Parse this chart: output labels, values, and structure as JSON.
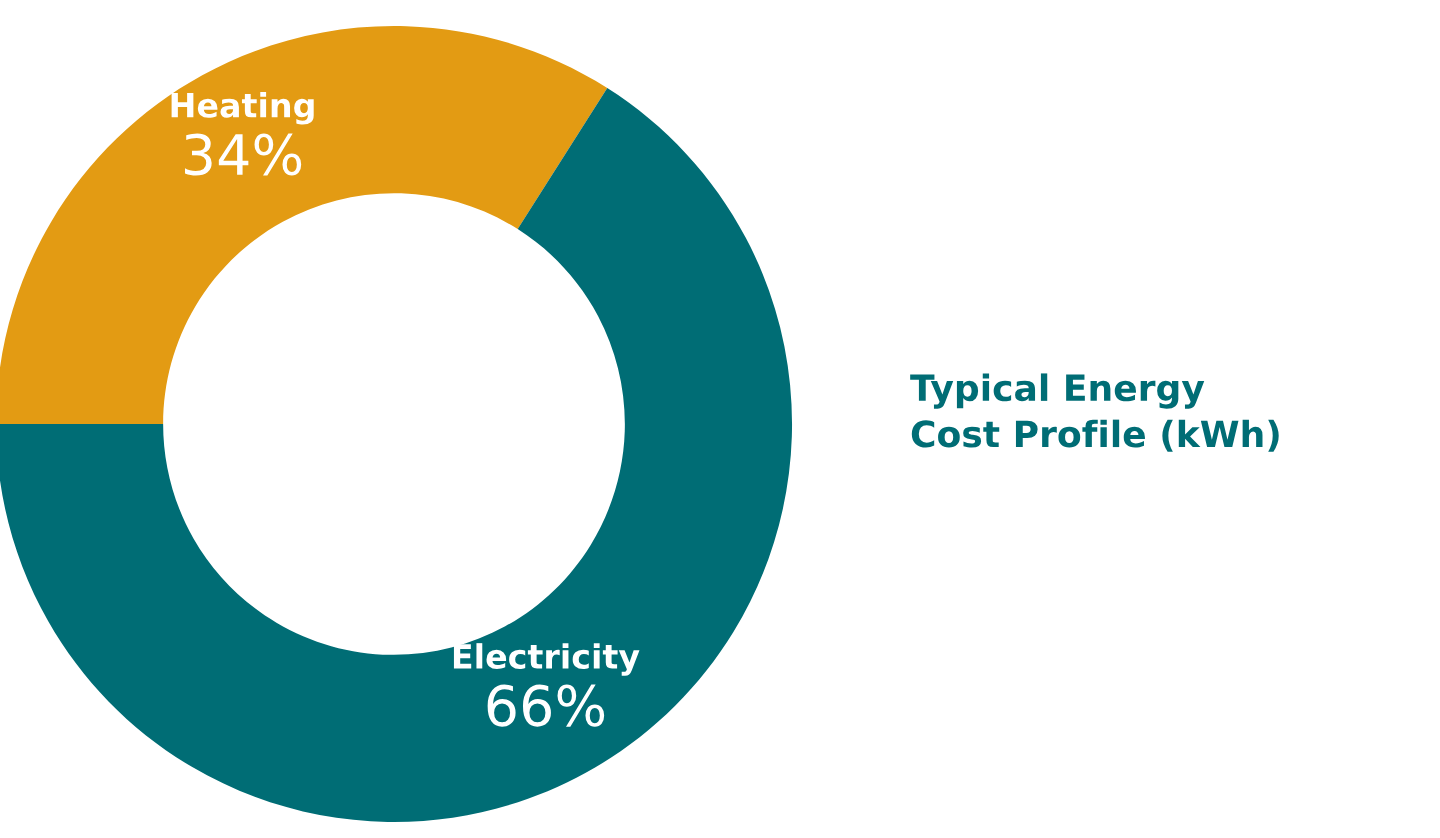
{
  "chart_data": {
    "type": "donut",
    "title": "Typical Energy\nCost Profile (kWh)",
    "categories": [
      "Heating",
      "Electricity"
    ],
    "values": [
      34,
      66
    ],
    "colors": [
      "#e39b13",
      "#006d75"
    ],
    "value_labels": [
      "34%",
      "66%"
    ]
  }
}
